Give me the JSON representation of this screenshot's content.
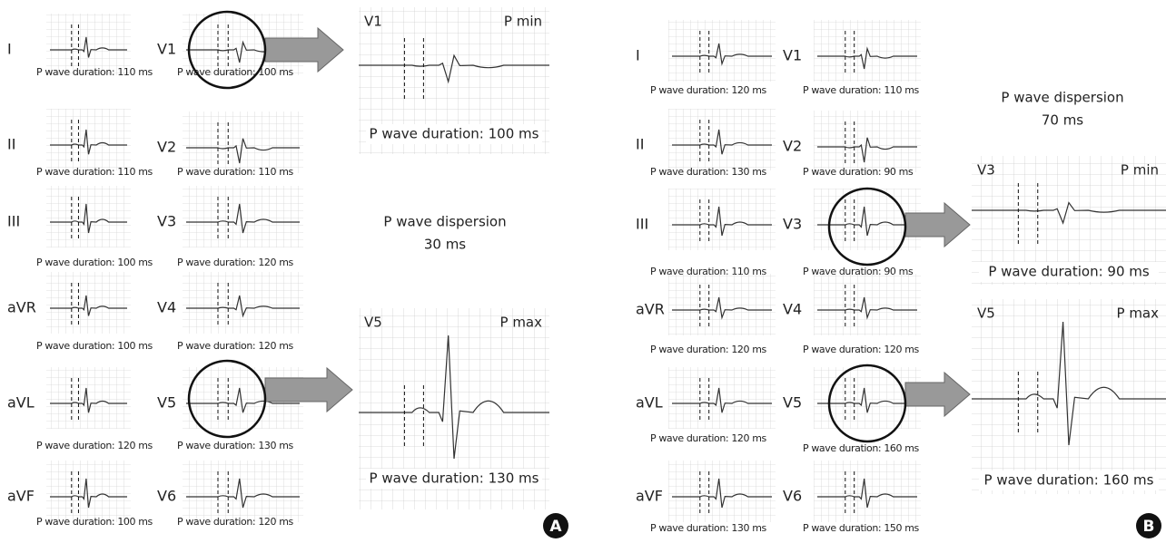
{
  "panels": [
    {
      "label": "A",
      "limb_leads": [
        {
          "lead": "I",
          "caption": "P wave duration: 110 ms"
        },
        {
          "lead": "II",
          "caption": "P wave duration: 110 ms"
        },
        {
          "lead": "III",
          "caption": "P wave duration: 100 ms"
        },
        {
          "lead": "aVR",
          "caption": "P wave duration: 100 ms"
        },
        {
          "lead": "aVL",
          "caption": "P wave duration: 120 ms"
        },
        {
          "lead": "aVF",
          "caption": "P wave duration: 100 ms"
        }
      ],
      "chest_leads": [
        {
          "lead": "V1",
          "caption": "P wave duration: 100 ms"
        },
        {
          "lead": "V2",
          "caption": "P wave duration: 110 ms"
        },
        {
          "lead": "V3",
          "caption": "P wave duration: 120 ms"
        },
        {
          "lead": "V4",
          "caption": "P wave duration: 120 ms"
        },
        {
          "lead": "V5",
          "caption": "P wave duration: 130 ms"
        },
        {
          "lead": "V6",
          "caption": "P wave duration: 120 ms"
        }
      ],
      "zoom": [
        {
          "lead": "V1",
          "tag": "P min",
          "caption": "P wave duration: 100 ms"
        },
        {
          "lead": "V5",
          "tag": "P max",
          "caption": "P wave duration: 130 ms"
        }
      ],
      "dispersion": {
        "title": "P wave dispersion",
        "value": "30 ms"
      }
    },
    {
      "label": "B",
      "limb_leads": [
        {
          "lead": "I",
          "caption": "P wave duration: 120 ms"
        },
        {
          "lead": "II",
          "caption": "P wave duration: 130 ms"
        },
        {
          "lead": "III",
          "caption": "P wave duration: 110 ms"
        },
        {
          "lead": "aVR",
          "caption": "P wave duration: 120 ms"
        },
        {
          "lead": "aVL",
          "caption": "P wave duration: 120 ms"
        },
        {
          "lead": "aVF",
          "caption": "P wave duration: 130 ms"
        }
      ],
      "chest_leads": [
        {
          "lead": "V1",
          "caption": "P wave duration: 110 ms"
        },
        {
          "lead": "V2",
          "caption": "P wave duration: 90 ms"
        },
        {
          "lead": "V3",
          "caption": "P wave duration: 90 ms"
        },
        {
          "lead": "V4",
          "caption": "P wave duration: 120 ms"
        },
        {
          "lead": "V5",
          "caption": "P wave duration: 160 ms"
        },
        {
          "lead": "V6",
          "caption": "P wave duration: 150 ms"
        }
      ],
      "zoom": [
        {
          "lead": "V3",
          "tag": "P min",
          "caption": "P wave duration: 90 ms"
        },
        {
          "lead": "V5",
          "tag": "P max",
          "caption": "P wave duration: 160 ms"
        }
      ],
      "dispersion": {
        "title": "P wave dispersion",
        "value": "70 ms"
      }
    }
  ]
}
